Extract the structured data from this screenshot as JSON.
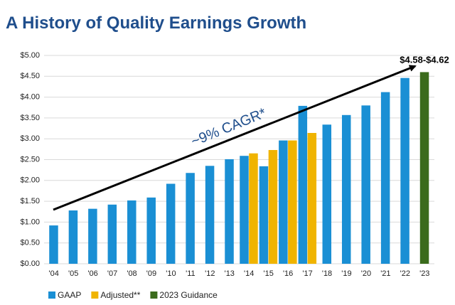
{
  "chart_data": {
    "type": "bar",
    "title": "A History of Quality Earnings Growth",
    "categories": [
      "'04",
      "'05",
      "'06",
      "'07",
      "'08",
      "'09",
      "'10",
      "'11",
      "'12",
      "'13",
      "'14",
      "'15",
      "'16",
      "'17",
      "'18",
      "'19",
      "'20",
      "'21",
      "'22",
      "'23"
    ],
    "series": [
      {
        "name": "GAAP",
        "color": "#1a8fd4",
        "values": [
          0.92,
          1.28,
          1.32,
          1.42,
          1.52,
          1.59,
          1.92,
          2.18,
          2.35,
          2.51,
          2.59,
          2.34,
          2.96,
          3.79,
          3.34,
          3.57,
          3.8,
          4.12,
          4.46,
          null
        ]
      },
      {
        "name": "Adjusted**",
        "color": "#f0b400",
        "values": [
          null,
          null,
          null,
          null,
          null,
          null,
          null,
          null,
          null,
          null,
          2.65,
          2.73,
          2.96,
          3.14,
          null,
          null,
          null,
          null,
          null,
          null
        ]
      },
      {
        "name": "2023 Guidance",
        "color": "#3b6b1c",
        "values": [
          null,
          null,
          null,
          null,
          null,
          null,
          null,
          null,
          null,
          null,
          null,
          null,
          null,
          null,
          null,
          null,
          null,
          null,
          null,
          4.6
        ]
      }
    ],
    "annotations": [
      "~9% CAGR*",
      "$4.58-$4.62"
    ],
    "ylim": [
      0,
      5
    ],
    "yticks": [
      {
        "value": 0,
        "label": "$0.00"
      },
      {
        "value": 0.5,
        "label": "$0.50"
      },
      {
        "value": 1,
        "label": "$1.00"
      },
      {
        "value": 1.5,
        "label": "$1.50"
      },
      {
        "value": 2,
        "label": "$2.00"
      },
      {
        "value": 2.5,
        "label": "$2.50"
      },
      {
        "value": 3,
        "label": "$3.00"
      },
      {
        "value": 3.5,
        "label": "$3.50"
      },
      {
        "value": 4,
        "label": "$4.00"
      },
      {
        "value": 4.5,
        "label": "$4.50"
      },
      {
        "value": 5,
        "label": "$5.00"
      }
    ],
    "grid": true
  }
}
